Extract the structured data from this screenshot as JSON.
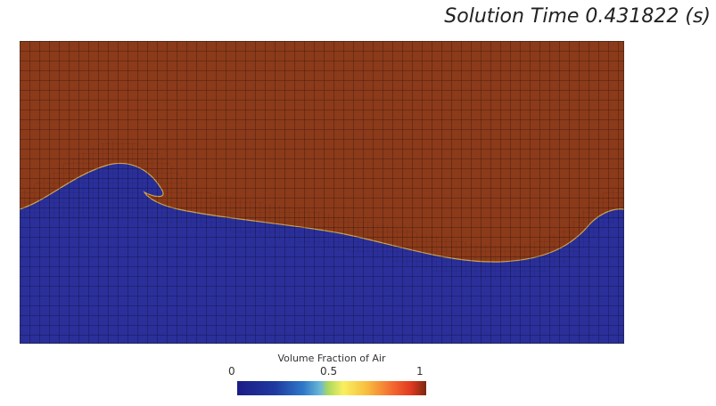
{
  "title": "Solution Time 0.431822 (s)",
  "legend": {
    "title": "Volume Fraction of Air",
    "ticks": [
      "0",
      "0.5",
      "1"
    ],
    "colormap": [
      "#1c1c86",
      "#2e78c8",
      "#a8d860",
      "#f8f060",
      "#f46a30",
      "#7a2810"
    ]
  },
  "colors": {
    "air": "#8b3a1a",
    "water": "#2a2f9a",
    "mesh": "#1a0a05"
  }
}
